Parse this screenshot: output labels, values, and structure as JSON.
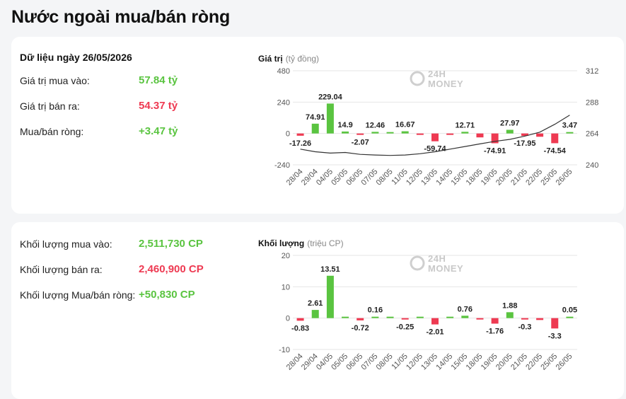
{
  "page": {
    "title": "Nước ngoài mua/bán ròng"
  },
  "value_panel": {
    "date_label": "Dữ liệu ngày 26/05/2026",
    "buy_label": "Giá trị mua vào:",
    "buy_value": "57.84 tỷ",
    "sell_label": "Giá trị bán ra:",
    "sell_value": "54.37 tỷ",
    "net_label": "Mua/bán ròng:",
    "net_value": "+3.47 tỷ",
    "chart_title": "Giá trị",
    "chart_unit": "(tỷ đồng)",
    "watermark_top": "24H",
    "watermark_bottom": "MONEY"
  },
  "volume_panel": {
    "buy_label": "Khối lượng mua vào:",
    "buy_value": "2,511,730 CP",
    "sell_label": "Khối lượng bán ra:",
    "sell_value": "2,460,900 CP",
    "net_label": "Khối lượng Mua/bán ròng:",
    "net_value": "+50,830 CP",
    "chart_title": "Khối lượng",
    "chart_unit": "(triệu CP)",
    "watermark_top": "24H",
    "watermark_bottom": "MONEY"
  },
  "colors": {
    "positive": "#5ac440",
    "negative": "#ee3a52",
    "line": "#333333",
    "grid": "#e6e6e6"
  },
  "chart_data": [
    {
      "type": "bar",
      "title": "Giá trị",
      "ylabel": "(tỷ đồng)",
      "categories": [
        "28/04",
        "29/04",
        "04/05",
        "05/05",
        "06/05",
        "07/05",
        "08/05",
        "11/05",
        "12/05",
        "13/05",
        "14/05",
        "15/05",
        "18/05",
        "19/05",
        "20/05",
        "21/05",
        "22/05",
        "25/05",
        "26/05"
      ],
      "values": [
        -17.26,
        74.91,
        229.04,
        14.9,
        -2.07,
        12.46,
        5,
        16.67,
        -2,
        -59.74,
        -6,
        12.71,
        -30,
        -74.91,
        27.97,
        -17.95,
        -25,
        -74.54,
        3.47
      ],
      "data_labels": [
        "-17.26",
        "74.91",
        "229.04",
        "14.9",
        "-2.07",
        "12.46",
        "",
        "16.67",
        "",
        "-59.74",
        "",
        "12.71",
        "",
        "-74.91",
        "27.97",
        "-17.95",
        "",
        "-74.54",
        "3.47"
      ],
      "ylim": [
        -240,
        480
      ],
      "yticks": [
        "480",
        "240",
        "0",
        "-240"
      ],
      "secondary_axis": {
        "ylim": [
          240,
          312
        ],
        "yticks": [
          "312",
          "288",
          "264",
          "240"
        ],
        "line_values": [
          252,
          250,
          249,
          249.5,
          248,
          247.5,
          247.2,
          247.5,
          248.5,
          250,
          252,
          254,
          256,
          258,
          259.5,
          262,
          265,
          271,
          278
        ]
      },
      "grid": true
    },
    {
      "type": "bar",
      "title": "Khối lượng",
      "ylabel": "(triệu CP)",
      "categories": [
        "28/04",
        "29/04",
        "04/05",
        "05/05",
        "06/05",
        "07/05",
        "08/05",
        "11/05",
        "12/05",
        "13/05",
        "14/05",
        "15/05",
        "18/05",
        "19/05",
        "20/05",
        "21/05",
        "22/05",
        "25/05",
        "26/05"
      ],
      "values": [
        -0.83,
        2.61,
        13.51,
        0.1,
        -0.72,
        0.16,
        0.1,
        -0.25,
        0.05,
        -2.01,
        0.05,
        0.76,
        -0.3,
        -1.76,
        1.88,
        -0.3,
        -0.6,
        -3.3,
        0.05
      ],
      "data_labels": [
        "-0.83",
        "2.61",
        "13.51",
        "",
        "-0.72",
        "0.16",
        "",
        "-0.25",
        "",
        "-2.01",
        "",
        "0.76",
        "",
        "-1.76",
        "1.88",
        "-0.3",
        "",
        "-3.3",
        "0.05"
      ],
      "ylim": [
        -10,
        20
      ],
      "yticks": [
        "20",
        "10",
        "0",
        "-10"
      ],
      "grid": true
    }
  ]
}
